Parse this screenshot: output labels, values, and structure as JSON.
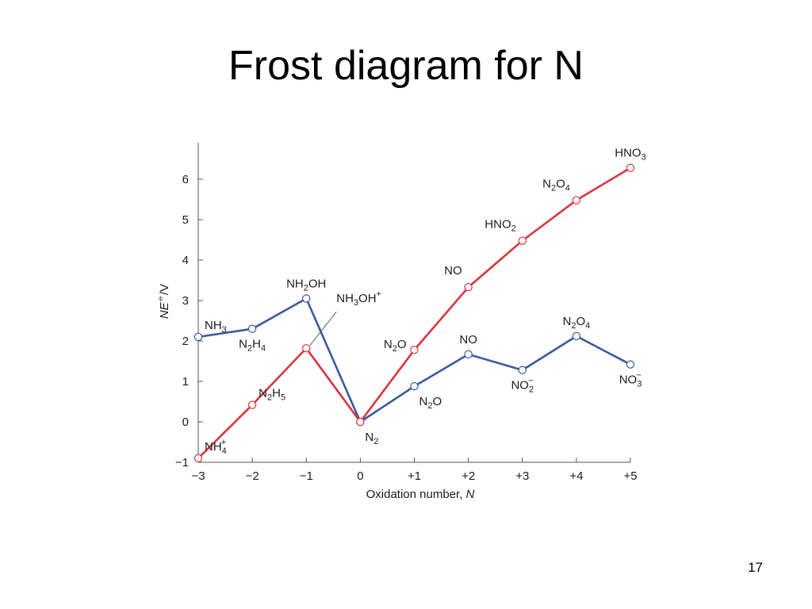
{
  "slide": {
    "title": "Frost diagram for N",
    "page_number": "17"
  },
  "colors": {
    "blue_series": "#3b5a9f",
    "red_series": "#d9363e",
    "axis": "#555555"
  },
  "chart_data": {
    "type": "line",
    "title": "",
    "xlabel_main": "Oxidation number, ",
    "xlabel_var": "N",
    "ylabel_main": "N",
    "ylabel_var": "E",
    "ylabel_sup": "⦵",
    "ylabel_unit": "/V",
    "x_ticks": [
      -3,
      -2,
      -1,
      0,
      1,
      2,
      3,
      4,
      5
    ],
    "x_tick_labels": [
      "−3",
      "−2",
      "−1",
      "0",
      "+1",
      "+2",
      "+3",
      "+4",
      "+5"
    ],
    "y_ticks": [
      -1,
      0,
      1,
      2,
      3,
      4,
      5,
      6
    ],
    "y_tick_labels": [
      "−1",
      "0",
      "1",
      "2",
      "3",
      "4",
      "5",
      "6"
    ],
    "xlim": [
      -3,
      5
    ],
    "ylim": [
      -1,
      6.8
    ],
    "grid": false,
    "series": [
      {
        "color": "#3b5a9f",
        "points": [
          {
            "x": -3,
            "y": 2.1,
            "label": [
              [
                "NH"
              ],
              [
                "3",
                "sub"
              ]
            ],
            "label_pos": "right"
          },
          {
            "x": -2,
            "y": 2.3,
            "label": [
              [
                "N"
              ],
              [
                "2",
                "sub"
              ],
              [
                "H"
              ],
              [
                "4",
                "sub"
              ]
            ],
            "label_pos": "below"
          },
          {
            "x": -1,
            "y": 3.05,
            "label": [
              [
                "NH"
              ],
              [
                "2",
                "sub"
              ],
              [
                "OH"
              ]
            ],
            "label_pos": "above"
          },
          {
            "x": 0,
            "y": 0.0,
            "label": [
              [
                "N"
              ],
              [
                "2",
                "sub"
              ]
            ],
            "label_pos": "below-right"
          },
          {
            "x": 1,
            "y": 0.88,
            "label": [
              [
                "N"
              ],
              [
                "2",
                "sub"
              ],
              [
                "O"
              ]
            ],
            "label_pos": "below-right"
          },
          {
            "x": 2,
            "y": 1.67,
            "label": [
              [
                "NO"
              ]
            ],
            "label_pos": "above"
          },
          {
            "x": 3,
            "y": 1.28,
            "label": [
              [
                "NO"
              ],
              [
                "2",
                "sub"
              ],
              [
                "−",
                "sup"
              ]
            ],
            "label_pos": "below"
          },
          {
            "x": 4,
            "y": 2.12,
            "label": [
              [
                "N"
              ],
              [
                "2",
                "sub"
              ],
              [
                "O"
              ],
              [
                "4",
                "sub"
              ]
            ],
            "label_pos": "above"
          },
          {
            "x": 5,
            "y": 1.42,
            "label": [
              [
                "NO"
              ],
              [
                "3",
                "sub"
              ],
              [
                "−",
                "sup"
              ]
            ],
            "label_pos": "below"
          }
        ]
      },
      {
        "color": "#d9363e",
        "points": [
          {
            "x": -3,
            "y": -0.9,
            "label": [
              [
                "NH"
              ],
              [
                "4",
                "sub"
              ],
              [
                "+",
                "sup"
              ]
            ],
            "label_pos": "right"
          },
          {
            "x": -2,
            "y": 0.42,
            "label": [
              [
                "N"
              ],
              [
                "2",
                "sub"
              ],
              [
                "H"
              ],
              [
                "5",
                "sub"
              ]
            ],
            "label_pos": "right"
          },
          {
            "x": -1,
            "y": 1.82,
            "label": [
              [
                "NH"
              ],
              [
                "3",
                "sub"
              ],
              [
                "OH"
              ],
              [
                "+",
                "sup"
              ]
            ],
            "label_pos": "leader"
          },
          {
            "x": 0,
            "y": 0.0,
            "label": null,
            "label_pos": "none"
          },
          {
            "x": 1,
            "y": 1.78,
            "label": [
              [
                "N"
              ],
              [
                "2",
                "sub"
              ],
              [
                "O"
              ]
            ],
            "label_pos": "left"
          },
          {
            "x": 2,
            "y": 3.33,
            "label": [
              [
                "NO"
              ]
            ],
            "label_pos": "above-left"
          },
          {
            "x": 3,
            "y": 4.48,
            "label": [
              [
                "HNO"
              ],
              [
                "2",
                "sub"
              ]
            ],
            "label_pos": "above-left"
          },
          {
            "x": 4,
            "y": 5.48,
            "label": [
              [
                "N"
              ],
              [
                "2",
                "sub"
              ],
              [
                "O"
              ],
              [
                "4",
                "sub"
              ]
            ],
            "label_pos": "above-left"
          },
          {
            "x": 5,
            "y": 6.28,
            "label": [
              [
                "HNO"
              ],
              [
                "3",
                "sub"
              ]
            ],
            "label_pos": "above"
          }
        ]
      }
    ]
  }
}
